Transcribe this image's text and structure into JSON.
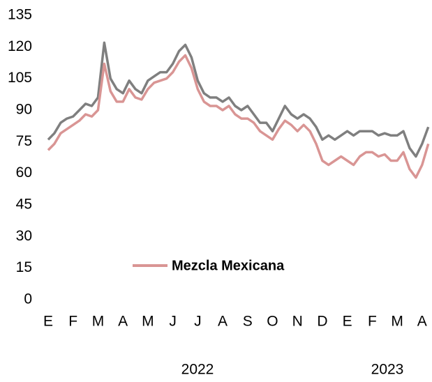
{
  "chart_data": {
    "type": "line",
    "categories": [
      "E",
      null,
      null,
      null,
      "F",
      null,
      null,
      null,
      "M",
      null,
      null,
      null,
      "A",
      null,
      null,
      null,
      "M",
      null,
      null,
      null,
      "J",
      null,
      null,
      null,
      "J",
      null,
      null,
      null,
      "A",
      null,
      null,
      null,
      "S",
      null,
      null,
      null,
      "O",
      null,
      null,
      null,
      "N",
      null,
      null,
      null,
      "D",
      null,
      null,
      null,
      "E",
      null,
      null,
      null,
      "F",
      null,
      null,
      null,
      "M",
      null,
      null,
      null,
      "A",
      null
    ],
    "years": [
      "2022",
      "2023"
    ],
    "series": [
      {
        "color": "#7f7f7f",
        "values": [
          76,
          79,
          84,
          86,
          87,
          90,
          93,
          92,
          96,
          122,
          105,
          100,
          98,
          104,
          100,
          98,
          104,
          106,
          108,
          108,
          112,
          118,
          121,
          115,
          104,
          98,
          96,
          96,
          94,
          96,
          92,
          90,
          92,
          88,
          84,
          84,
          80,
          86,
          92,
          88,
          86,
          88,
          86,
          82,
          76,
          78,
          76,
          78,
          80,
          78,
          80,
          80,
          80,
          78,
          79,
          78,
          78,
          80,
          72,
          68,
          74,
          82
        ]
      },
      {
        "name": "Mezcla Mexicana",
        "color": "#d99594",
        "values": [
          71,
          74,
          79,
          81,
          83,
          85,
          88,
          87,
          90,
          112,
          99,
          94,
          94,
          100,
          96,
          95,
          100,
          103,
          104,
          105,
          108,
          113,
          116,
          110,
          100,
          94,
          92,
          92,
          90,
          92,
          88,
          86,
          86,
          84,
          80,
          78,
          76,
          81,
          85,
          83,
          80,
          83,
          80,
          74,
          66,
          64,
          66,
          68,
          66,
          64,
          68,
          70,
          70,
          68,
          69,
          66,
          66,
          70,
          62,
          58,
          64,
          74
        ]
      }
    ],
    "ylim": [
      0,
      135
    ],
    "yticks": [
      0,
      15,
      30,
      45,
      60,
      75,
      90,
      105,
      120,
      135
    ],
    "legend": "center"
  }
}
